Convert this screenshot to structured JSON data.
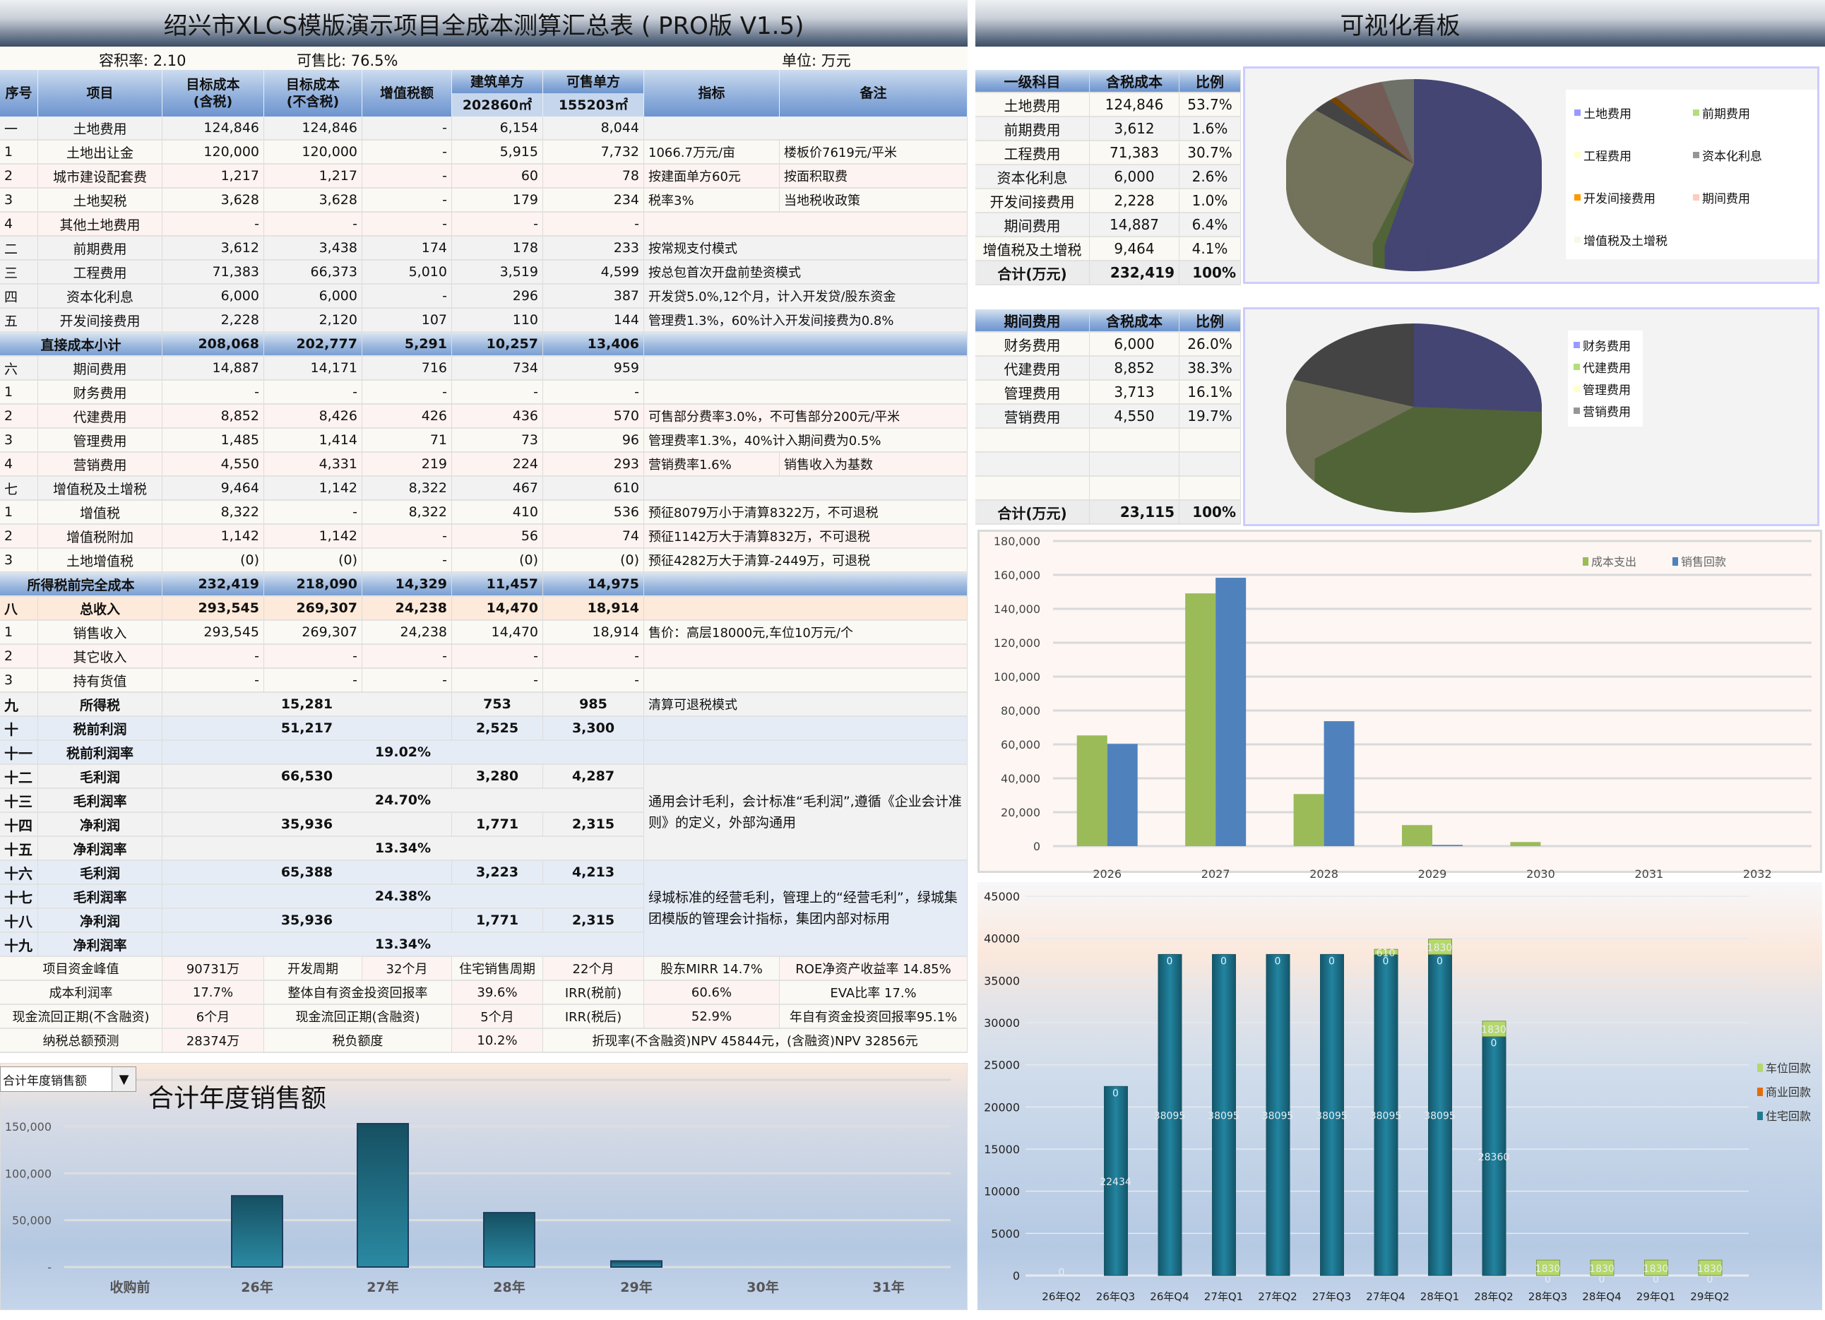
{
  "left_title": "绍兴市XLCS模版演示项目全成本测算汇总表 ( PRO版 V1.5)",
  "right_title": "可视化看板",
  "info": {
    "plot_ratio": "容积率:   2.10",
    "saleable_ratio": "可售比:   76.5%",
    "unit": "单位:  万元"
  },
  "header": {
    "no": "序号",
    "item": "项目",
    "cost_incl": "目标成本\n(含税)",
    "cost_excl": "目标成本\n(不含税)",
    "vat": "增值税额",
    "per_build": "建筑单方",
    "per_build_area": "202860㎡",
    "per_sale": "可售单方",
    "per_sale_area": "155203㎡",
    "indicator": "指标",
    "note": "备注"
  },
  "rows": [
    {
      "type": "section",
      "no": "一",
      "item": "土地费用",
      "incl": "124,846",
      "excl": "124,846",
      "vat": "-",
      "pb": "6,154",
      "ps": "8,044",
      "ind": "",
      "note": ""
    },
    {
      "type": "detail",
      "no": "1",
      "item": "土地出让金",
      "incl": "120,000",
      "excl": "120,000",
      "vat": "-",
      "pb": "5,915",
      "ps": "7,732",
      "ind": "1066.7万元/亩",
      "note": "楼板价7619元/平米"
    },
    {
      "type": "detail",
      "no": "2",
      "item": "城市建设配套费",
      "incl": "1,217",
      "excl": "1,217",
      "vat": "-",
      "pb": "60",
      "ps": "78",
      "ind": "按建面单方60元",
      "note": "按面积取费"
    },
    {
      "type": "detail",
      "no": "3",
      "item": "土地契税",
      "incl": "3,628",
      "excl": "3,628",
      "vat": "-",
      "pb": "179",
      "ps": "234",
      "ind": "税率3%",
      "note": "当地税收政策"
    },
    {
      "type": "detail",
      "no": "4",
      "item": "其他土地费用",
      "incl": "-",
      "excl": "-",
      "vat": "-",
      "pb": "-",
      "ps": "-",
      "ind": "",
      "note": ""
    },
    {
      "type": "section",
      "no": "二",
      "item": "前期费用",
      "incl": "3,612",
      "excl": "3,438",
      "vat": "174",
      "pb": "178",
      "ps": "233",
      "ind": "按常规支付模式",
      "note": ""
    },
    {
      "type": "section",
      "no": "三",
      "item": "工程费用",
      "incl": "71,383",
      "excl": "66,373",
      "vat": "5,010",
      "pb": "3,519",
      "ps": "4,599",
      "ind": "按总包首次开盘前垫资模式",
      "note": ""
    },
    {
      "type": "section",
      "no": "四",
      "item": "资本化利息",
      "incl": "6,000",
      "excl": "6,000",
      "vat": "-",
      "pb": "296",
      "ps": "387",
      "ind": " 开发贷5.0%,12个月，计入开发贷/股东资金",
      "note": ""
    },
    {
      "type": "section",
      "no": "五",
      "item": "开发间接费用",
      "incl": "2,228",
      "excl": "2,120",
      "vat": "107",
      "pb": "110",
      "ps": "144",
      "ind": " 管理费1.3%，60%计入开发间接费为0.8%",
      "note": ""
    },
    {
      "type": "subtotal",
      "no": "",
      "item": "直接成本小计",
      "incl": "208,068",
      "excl": "202,777",
      "vat": "5,291",
      "pb": "10,257",
      "ps": "13,406",
      "ind": "",
      "note": ""
    },
    {
      "type": "section",
      "no": "六",
      "item": "期间费用",
      "incl": "14,887",
      "excl": "14,171",
      "vat": "716",
      "pb": "734",
      "ps": "959",
      "ind": "",
      "note": ""
    },
    {
      "type": "detail",
      "no": "1",
      "item": "财务费用",
      "incl": "-",
      "excl": "-",
      "vat": "-",
      "pb": "-",
      "ps": "-",
      "ind": "",
      "note": ""
    },
    {
      "type": "detail",
      "no": "2",
      "item": "代建费用",
      "incl": "8,852",
      "excl": "8,426",
      "vat": "426",
      "pb": "436",
      "ps": "570",
      "ind": " 可售部分费率3.0%，不可售部分200元/平米",
      "note": ""
    },
    {
      "type": "detail",
      "no": "3",
      "item": "管理费用",
      "incl": "1,485",
      "excl": "1,414",
      "vat": "71",
      "pb": "73",
      "ps": "96",
      "ind": " 管理费率1.3%，40%计入期间费为0.5%",
      "note": ""
    },
    {
      "type": "detail",
      "no": "4",
      "item": "营销费用",
      "incl": "4,550",
      "excl": "4,331",
      "vat": "219",
      "pb": "224",
      "ps": "293",
      "ind": "营销费率1.6%",
      "note": "销售收入为基数"
    },
    {
      "type": "section",
      "no": "七",
      "item": "增值税及土增税",
      "incl": "9,464",
      "excl": "1,142",
      "vat": "8,322",
      "pb": "467",
      "ps": "610",
      "ind": "",
      "note": ""
    },
    {
      "type": "detail",
      "no": "1",
      "item": "增值税",
      "incl": "8,322",
      "excl": "-",
      "vat": "8,322",
      "pb": "410",
      "ps": "536",
      "ind": "预征8079万小于清算8322万，不可退税",
      "note": ""
    },
    {
      "type": "detail",
      "no": "2",
      "item": "增值税附加",
      "incl": "1,142",
      "excl": "1,142",
      "vat": "-",
      "pb": "56",
      "ps": "74",
      "ind": "预征1142万大于清算832万，不可退税",
      "note": ""
    },
    {
      "type": "detail",
      "no": "3",
      "item": "土地增值税",
      "incl": "(0)",
      "excl": "(0)",
      "vat": "-",
      "pb": "(0)",
      "ps": "(0)",
      "ind": "预征4282万大于清算-2449万，可退税",
      "note": ""
    },
    {
      "type": "subtotal",
      "no": "",
      "item": "所得税前完全成本",
      "incl": "232,419",
      "excl": "218,090",
      "vat": "14,329",
      "pb": "11,457",
      "ps": "14,975",
      "ind": "",
      "note": ""
    },
    {
      "type": "income",
      "no": "八",
      "item": "总收入",
      "incl": "293,545",
      "excl": "269,307",
      "vat": "24,238",
      "pb": "14,470",
      "ps": "18,914",
      "ind": "",
      "note": ""
    },
    {
      "type": "detail",
      "no": "1",
      "item": "销售收入",
      "incl": "293,545",
      "excl": "269,307",
      "vat": "24,238",
      "pb": "14,470",
      "ps": "18,914",
      "ind": "售价：高层18000元,车位10万元/个",
      "note": ""
    },
    {
      "type": "detail",
      "no": "2",
      "item": "其它收入",
      "incl": "-",
      "excl": "-",
      "vat": "-",
      "pb": "-",
      "ps": "-",
      "ind": "",
      "note": ""
    },
    {
      "type": "detail",
      "no": "3",
      "item": "持有货值",
      "incl": "-",
      "excl": "-",
      "vat": "-",
      "pb": "-",
      "ps": "-",
      "ind": "",
      "note": ""
    },
    {
      "type": "profit",
      "group": "tax",
      "no": "九",
      "item": "所得税",
      "amount": "15,281",
      "pb": "753",
      "ps": "985",
      "ind": "清算可退税模式"
    },
    {
      "type": "profit",
      "group": "pretax",
      "no": "十",
      "item": "税前利润",
      "amount": "51,217",
      "pb": "2,525",
      "ps": "3,300",
      "ind": ""
    },
    {
      "type": "rate",
      "group": "pretax",
      "no": "十一",
      "item": "税前利润率",
      "rate": "19.02%"
    },
    {
      "type": "profit",
      "group": "accounting",
      "no": "十二",
      "item": "毛利润",
      "amount": "66,530",
      "pb": "3,280",
      "ps": "4,287"
    },
    {
      "type": "rate",
      "group": "accounting",
      "no": "十三",
      "item": "毛利润率",
      "rate": "24.70%"
    },
    {
      "type": "profit",
      "group": "accounting",
      "no": "十四",
      "item": "净利润",
      "amount": "35,936",
      "pb": "1,771",
      "ps": "2,315"
    },
    {
      "type": "rate",
      "group": "accounting",
      "no": "十五",
      "item": "净利润率",
      "rate": "13.34%"
    },
    {
      "type": "profit",
      "group": "greentown",
      "no": "十六",
      "item": "毛利润",
      "amount": "65,388",
      "pb": "3,223",
      "ps": "4,213"
    },
    {
      "type": "rate",
      "group": "greentown",
      "no": "十七",
      "item": "毛利润率",
      "rate": "24.38%"
    },
    {
      "type": "profit",
      "group": "greentown",
      "no": "十八",
      "item": "净利润",
      "amount": "35,936",
      "pb": "1,771",
      "ps": "2,315"
    },
    {
      "type": "rate",
      "group": "greentown",
      "no": "十九",
      "item": "净利润率",
      "rate": "13.34%"
    }
  ],
  "group_notes": {
    "accounting": "通用会计毛利，会计标准“毛利润”,遵循《企业会计准则》的定义，外部沟通用",
    "greentown": "绿城标准的经营毛利，管理上的“经营毛利”，绿城集团模版的管理会计指标，集团内部对标用"
  },
  "footer": [
    [
      "项目资金峰值",
      "90731万",
      "开发周期",
      "32个月",
      "住宅销售周期",
      "22个月",
      "股东MIRR 14.7%",
      "ROE净资产收益率 14.85%"
    ],
    [
      "成本利润率",
      "17.7%",
      "整体自有资金投资回报率",
      "39.6%",
      "IRR(税前)",
      "60.6%",
      "EVA比率 17.%"
    ],
    [
      "现金流回正期(不含融资)",
      "6个月",
      "现金流回正期(含融资)",
      "5个月",
      "IRR(税后)",
      "52.9%",
      "年自有资金投资回报率95.1%"
    ],
    [
      "纳税总额预测",
      "28374万",
      "税负额度",
      "10.2%",
      "折现率(不含融资)NPV 45844元，(含融资)NPV 32856元"
    ]
  ],
  "summary_table": {
    "headers": [
      "一级科目",
      "含税成本",
      "比例"
    ],
    "rows": [
      [
        "土地费用",
        "124,846",
        "53.7%"
      ],
      [
        "前期费用",
        "3,612",
        "1.6%"
      ],
      [
        "工程费用",
        "71,383",
        "30.7%"
      ],
      [
        "资本化利息",
        "6,000",
        "2.6%"
      ],
      [
        "开发间接费用",
        "2,228",
        "1.0%"
      ],
      [
        "期间费用",
        "14,887",
        "6.4%"
      ],
      [
        "增值税及土增税",
        "9,464",
        "4.1%"
      ]
    ],
    "total": [
      "合计(万元)",
      "232,419",
      "100%"
    ]
  },
  "period_table": {
    "headers": [
      "期间费用",
      "含税成本",
      "比例"
    ],
    "rows": [
      [
        "财务费用",
        "6,000",
        "26.0%"
      ],
      [
        "代建费用",
        "8,852",
        "38.3%"
      ],
      [
        "管理费用",
        "3,713",
        "16.1%"
      ],
      [
        "营销费用",
        "4,550",
        "19.7%"
      ],
      [
        "",
        "",
        ""
      ],
      [
        "",
        "",
        ""
      ],
      [
        "",
        "",
        ""
      ]
    ],
    "total": [
      "合计(万元)",
      "23,115",
      "100%"
    ]
  },
  "chart_data": [
    {
      "type": "pie",
      "labels": [
        "土地费用",
        "前期费用",
        "工程费用",
        "资本化利息",
        "开发间接费用",
        "期间费用",
        "增值税及土增税"
      ],
      "values": [
        124846,
        3612,
        71383,
        6000,
        2228,
        14887,
        9464
      ],
      "colors": [
        "#9999ff",
        "#b3de7a",
        "#ffffcc",
        "#969696",
        "#ff9900",
        "#ffccc0",
        "#f3fbe8"
      ],
      "legend": "right"
    },
    {
      "type": "pie",
      "labels": [
        "财务费用",
        "代建费用",
        "管理费用",
        "营销费用"
      ],
      "values": [
        6000,
        8852,
        3713,
        4550
      ],
      "colors": [
        "#9999ff",
        "#b3de7a",
        "#ffffcc",
        "#969696"
      ],
      "legend": "right"
    },
    {
      "type": "bar",
      "categories": [
        "2026",
        "2027",
        "2028",
        "2029",
        "2030",
        "2031",
        "2032"
      ],
      "series": [
        {
          "name": "成本支出",
          "color": "#9bbb59",
          "values": [
            65300,
            149100,
            30700,
            12400,
            2400,
            0,
            0
          ]
        },
        {
          "name": "销售回款",
          "color": "#4f81bd",
          "values": [
            60300,
            158300,
            73700,
            700,
            0,
            0,
            0
          ]
        }
      ],
      "ylim": [
        0,
        180000
      ],
      "yticks": [
        "0",
        "20,000",
        "40,000",
        "60,000",
        "80,000",
        "100,000",
        "120,000",
        "140,000",
        "160,000",
        "180,000"
      ],
      "grid": true,
      "legend": "top-right"
    },
    {
      "type": "bar",
      "stacked": true,
      "categories": [
        "26年Q2",
        "26年Q3",
        "26年Q4",
        "27年Q1",
        "27年Q2",
        "27年Q3",
        "27年Q4",
        "28年Q1",
        "28年Q2",
        "28年Q3",
        "28年Q4",
        "29年Q1",
        "29年Q2"
      ],
      "series": [
        {
          "name": "住宅回款",
          "color": "#1f7a90",
          "values": [
            0,
            22434,
            38095,
            38095,
            38095,
            38095,
            38095,
            38095,
            28360,
            0,
            0,
            0,
            0
          ]
        },
        {
          "name": "商业回款",
          "color": "#e46c0a",
          "values": [
            0,
            0,
            0,
            0,
            0,
            0,
            0,
            0,
            0,
            0,
            0,
            0,
            0
          ]
        },
        {
          "name": "车位回款",
          "color": "#b5d86a",
          "values": [
            0,
            0,
            0,
            0,
            0,
            0,
            610,
            1830,
            1830,
            1830,
            1830,
            1830,
            1830
          ]
        }
      ],
      "ylim": [
        0,
        45000
      ],
      "yticks": [
        "0",
        "5000",
        "10000",
        "15000",
        "20000",
        "25000",
        "30000",
        "35000",
        "40000",
        "45000"
      ],
      "legend": "right"
    },
    {
      "type": "bar",
      "title": "合计年度销售额",
      "categories": [
        "收购前",
        "26年",
        "27年",
        "28年",
        "29年",
        "30年",
        "31年"
      ],
      "values": [
        0,
        76000,
        153000,
        58000,
        6500,
        0,
        0
      ],
      "ylim": [
        0,
        150000
      ],
      "yticks": [
        "-",
        "50,000",
        "100,000",
        "150,000"
      ],
      "grid": true,
      "color": "#1f7a90"
    }
  ],
  "dropdown": {
    "selected": "合计年度销售额"
  }
}
